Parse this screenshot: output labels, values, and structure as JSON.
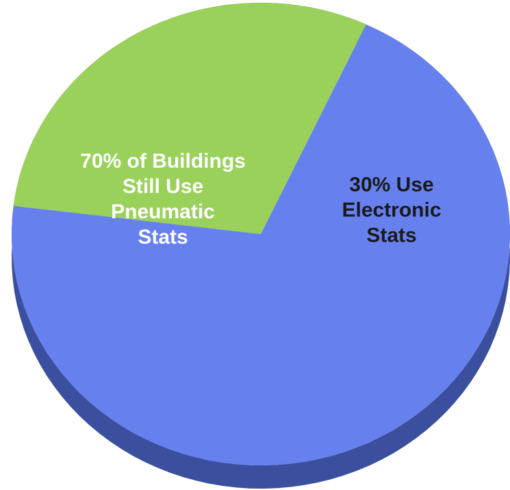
{
  "chart_data": {
    "type": "pie",
    "title": "",
    "categories": [
      "Pneumatic",
      "Electronic"
    ],
    "values": [
      70,
      30
    ],
    "labels": [
      "70% of Buildings\nStill Use\nPneumatic\nStats",
      "30% Use\nElectronic\nStats"
    ],
    "colors": [
      "#6680ee",
      "#99d15b"
    ],
    "side_colors": [
      "#3a4f9e",
      "#4b6a22"
    ],
    "label_colors": [
      "#ffffff",
      "#1a1a1a"
    ],
    "style": "3d",
    "legend": "none"
  }
}
